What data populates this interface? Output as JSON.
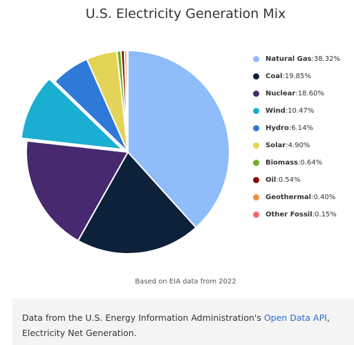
{
  "chart_data": {
    "type": "pie",
    "title": "U.S. Electricity Generation Mix",
    "slices": [
      {
        "name": "Natural Gas",
        "value": 38.32,
        "label": "38.32%",
        "color": "#8fbcfb"
      },
      {
        "name": "Coal",
        "value": 19.85,
        "label": "19.85%",
        "color": "#0d223a"
      },
      {
        "name": "Nuclear",
        "value": 18.6,
        "label": "18.60%",
        "color": "#46296e"
      },
      {
        "name": "Wind",
        "value": 10.47,
        "label": "10.47%",
        "color": "#1aafd0",
        "exploded": true
      },
      {
        "name": "Hydro",
        "value": 6.14,
        "label": "6.14%",
        "color": "#2f7ad9"
      },
      {
        "name": "Solar",
        "value": 4.9,
        "label": "4.90%",
        "color": "#e3d457"
      },
      {
        "name": "Biomass",
        "value": 0.64,
        "label": "0.64%",
        "color": "#6fae1f"
      },
      {
        "name": "Oil",
        "value": 0.54,
        "label": "0.54%",
        "color": "#8a0a0a"
      },
      {
        "name": "Geothermal",
        "value": 0.4,
        "label": "0.40%",
        "color": "#f0903a"
      },
      {
        "name": "Other Fossil",
        "value": 0.15,
        "label": "0.15%",
        "color": "#f06a6e"
      }
    ],
    "legend_position": "right"
  },
  "legend_separator": ": ",
  "source_note": "Based on EIA data from 2022",
  "footer": {
    "text_before": "Data from the U.S. Energy Information Administration's ",
    "link_text": "Open Data API",
    "text_after": ",",
    "line2": "Electricity Net Generation."
  }
}
